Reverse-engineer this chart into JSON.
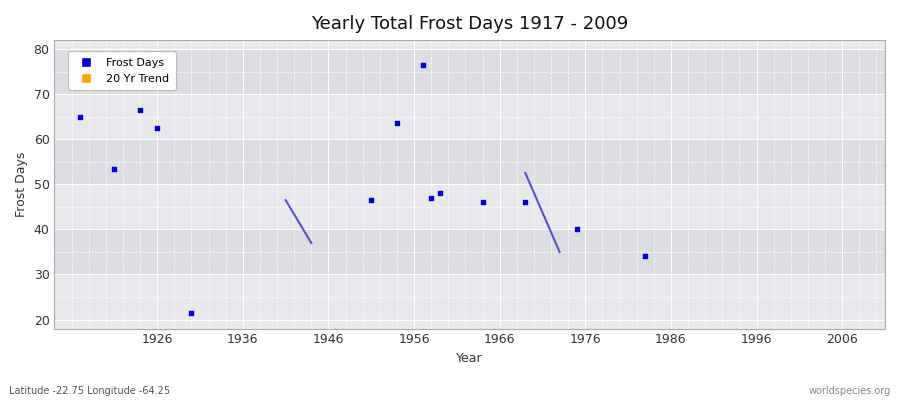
{
  "title": "Yearly Total Frost Days 1917 - 2009",
  "xlabel": "Year",
  "ylabel": "Frost Days",
  "xlim": [
    1914,
    2011
  ],
  "ylim": [
    18,
    82
  ],
  "xticks": [
    1926,
    1936,
    1946,
    1956,
    1966,
    1976,
    1986,
    1996,
    2006
  ],
  "yticks": [
    20,
    30,
    40,
    50,
    60,
    70,
    80
  ],
  "bg_color": "#e8e8ed",
  "band_color_dark": "#dcdce3",
  "scatter_color": "#0000dd",
  "trend_color": "#5555cc",
  "scatter_points": [
    [
      1917,
      65.0
    ],
    [
      1921,
      53.5
    ],
    [
      1924,
      66.5
    ],
    [
      1926,
      62.5
    ],
    [
      1930,
      21.5
    ],
    [
      1951,
      46.5
    ],
    [
      1954,
      63.5
    ],
    [
      1957,
      76.5
    ],
    [
      1958,
      47.0
    ],
    [
      1959,
      48.0
    ],
    [
      1964,
      46.0
    ],
    [
      1969,
      46.0
    ],
    [
      1975,
      40.0
    ],
    [
      1983,
      34.0
    ]
  ],
  "trend_lines": [
    {
      "x": [
        1941,
        1944
      ],
      "y": [
        46.5,
        37.0
      ]
    },
    {
      "x": [
        1969,
        1973
      ],
      "y": [
        52.5,
        35.0
      ]
    }
  ],
  "watermark": "worldspecies.org",
  "footnote": "Latitude -22.75 Longitude -64.25",
  "legend_entries": [
    "Frost Days",
    "20 Yr Trend"
  ],
  "legend_colors": [
    "#0000dd",
    "#ffa500"
  ]
}
